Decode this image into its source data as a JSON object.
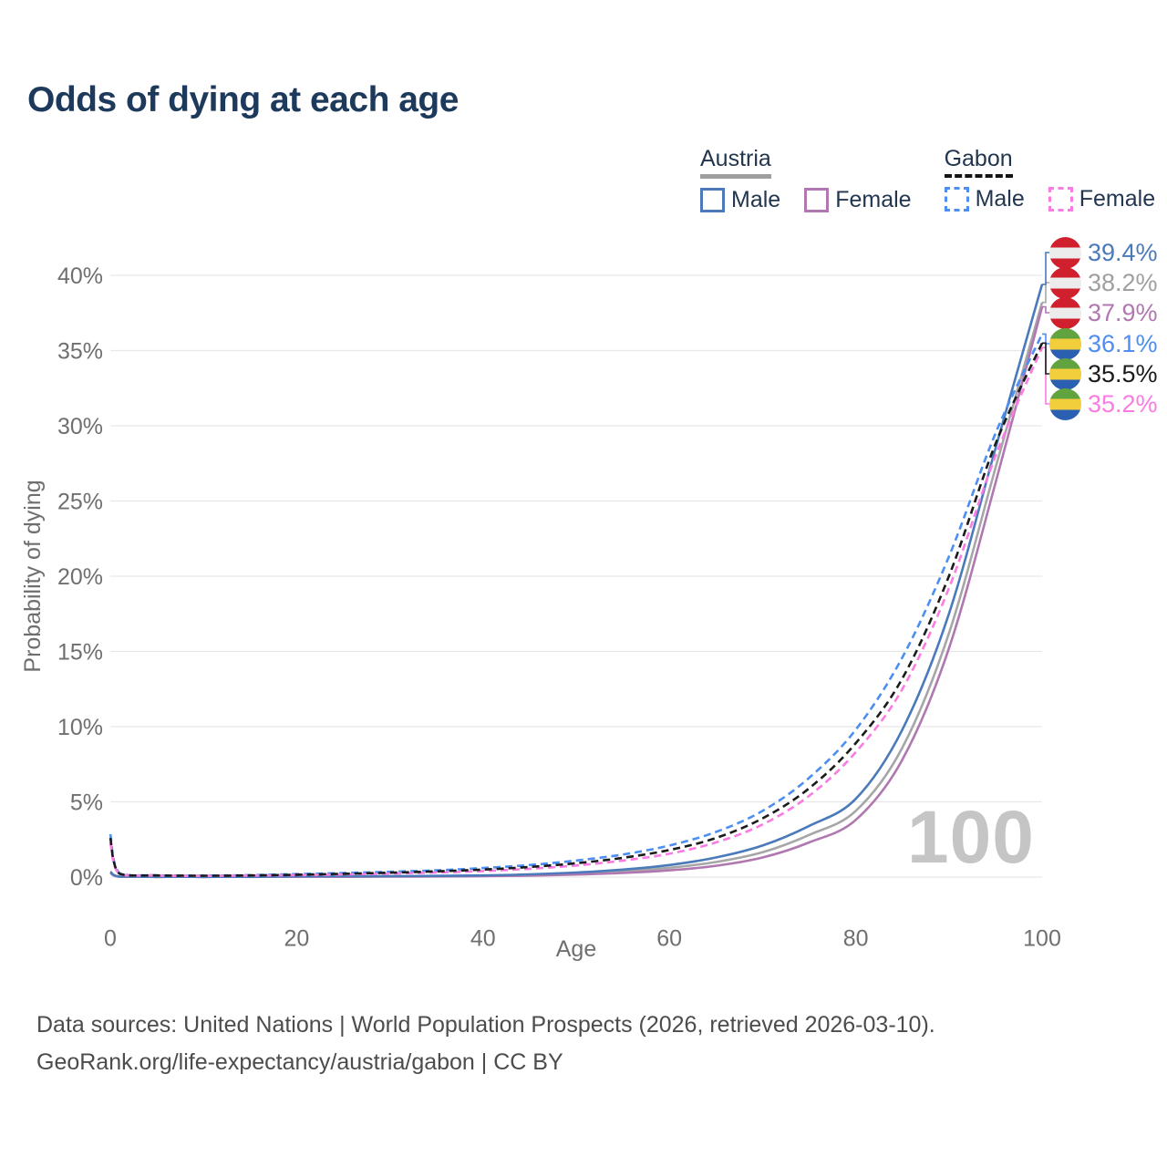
{
  "title": "Odds of dying at each age",
  "legend": {
    "groups": [
      {
        "name": "Austria",
        "line_style": "solid",
        "underline_color": "#9e9e9e",
        "items": [
          {
            "label": "Male",
            "color": "#4a7ab9",
            "dashed": false
          },
          {
            "label": "Female",
            "color": "#b077b0",
            "dashed": false
          }
        ]
      },
      {
        "name": "Gabon",
        "line_style": "dashed",
        "underline_color": "#141414",
        "items": [
          {
            "label": "Male",
            "color": "#4d8ef2",
            "dashed": true
          },
          {
            "label": "Female",
            "color": "#fa7ce2",
            "dashed": true
          }
        ]
      }
    ]
  },
  "watermark_age": "100",
  "footer": {
    "line1": "Data sources: United Nations | World Population Prospects (2026, retrieved 2026-03-10).",
    "line2": "GeoRank.org/life-expectancy/austria/gabon | CC BY"
  },
  "chart_data": {
    "type": "line",
    "title": "Odds of dying at each age",
    "xlabel": "Age",
    "ylabel": "Probability of dying",
    "xlim": [
      0,
      100
    ],
    "ylim": [
      0,
      41
    ],
    "grid": true,
    "x_tick_values": [
      0,
      20,
      40,
      60,
      80,
      100
    ],
    "x_tick_labels": [
      "0",
      "20",
      "40",
      "60",
      "80",
      "100"
    ],
    "y_tick_values": [
      0,
      5,
      10,
      15,
      20,
      25,
      30,
      35,
      40
    ],
    "y_tick_labels": [
      "0%",
      "5%",
      "10%",
      "15%",
      "20%",
      "25%",
      "30%",
      "35%",
      "40%"
    ],
    "x": [
      0,
      1,
      5,
      10,
      15,
      20,
      25,
      30,
      35,
      40,
      45,
      50,
      55,
      60,
      65,
      70,
      75,
      80,
      85,
      90,
      95,
      100
    ],
    "series": [
      {
        "id": "austria-total",
        "name": "Austria (both sexes)",
        "country": "Austria",
        "color": "#a6a6a6",
        "dashed": false,
        "end_label": "38.2%",
        "label_color": "#9f9f9f",
        "flag": "austria",
        "values": [
          0.31,
          0.03,
          0.01,
          0.01,
          0.02,
          0.04,
          0.04,
          0.05,
          0.06,
          0.09,
          0.14,
          0.23,
          0.38,
          0.62,
          1.0,
          1.65,
          2.8,
          4.4,
          8.6,
          16.2,
          27.2,
          38.2
        ]
      },
      {
        "id": "austria-female",
        "name": "Austria Female",
        "country": "Austria",
        "color": "#b077b0",
        "dashed": false,
        "end_label": "37.9%",
        "label_color": "#b077b0",
        "flag": "austria",
        "values": [
          0.28,
          0.02,
          0.01,
          0.01,
          0.01,
          0.02,
          0.02,
          0.03,
          0.04,
          0.06,
          0.1,
          0.17,
          0.27,
          0.45,
          0.75,
          1.3,
          2.3,
          3.8,
          7.8,
          15.2,
          26.2,
          37.9
        ]
      },
      {
        "id": "austria-male",
        "name": "Austria Male",
        "country": "Austria",
        "color": "#4a7ab9",
        "dashed": false,
        "end_label": "39.4%",
        "label_color": "#4a7ab9",
        "flag": "austria",
        "values": [
          0.35,
          0.03,
          0.01,
          0.01,
          0.02,
          0.05,
          0.06,
          0.06,
          0.08,
          0.11,
          0.18,
          0.3,
          0.5,
          0.8,
          1.3,
          2.1,
          3.4,
          5.2,
          9.8,
          17.5,
          28.5,
          39.4
        ]
      },
      {
        "id": "gabon-male",
        "name": "Gabon Male",
        "country": "Gabon",
        "color": "#4d8ef2",
        "dashed": true,
        "end_label": "36.1%",
        "label_color": "#4d8ef2",
        "flag": "gabon",
        "values": [
          2.85,
          0.25,
          0.12,
          0.1,
          0.13,
          0.2,
          0.27,
          0.35,
          0.45,
          0.6,
          0.8,
          1.1,
          1.5,
          2.1,
          3.0,
          4.4,
          6.6,
          9.8,
          14.6,
          21.3,
          29.5,
          36.1
        ]
      },
      {
        "id": "gabon-female",
        "name": "Gabon Female",
        "country": "Gabon",
        "color": "#fa7ce2",
        "dashed": true,
        "end_label": "35.2%",
        "label_color": "#fa7ce2",
        "flag": "gabon",
        "values": [
          2.3,
          0.2,
          0.1,
          0.08,
          0.1,
          0.13,
          0.17,
          0.23,
          0.3,
          0.4,
          0.55,
          0.77,
          1.1,
          1.55,
          2.3,
          3.5,
          5.4,
          8.3,
          12.5,
          19.2,
          28.0,
          35.2
        ]
      },
      {
        "id": "gabon-total",
        "name": "Gabon (both sexes)",
        "country": "Gabon",
        "color": "#1b1b1b",
        "dashed": true,
        "end_label": "35.5%",
        "label_color": "#1b1b1b",
        "flag": "gabon",
        "values": [
          2.6,
          0.22,
          0.11,
          0.09,
          0.11,
          0.16,
          0.22,
          0.29,
          0.38,
          0.5,
          0.67,
          0.92,
          1.28,
          1.8,
          2.6,
          3.9,
          5.9,
          8.9,
          13.2,
          20.0,
          28.8,
          35.5
        ]
      }
    ],
    "end_label_order": [
      "austria-male",
      "austria-total",
      "austria-female",
      "gabon-male",
      "gabon-total",
      "gabon-female"
    ],
    "legend_position": "top-right"
  }
}
